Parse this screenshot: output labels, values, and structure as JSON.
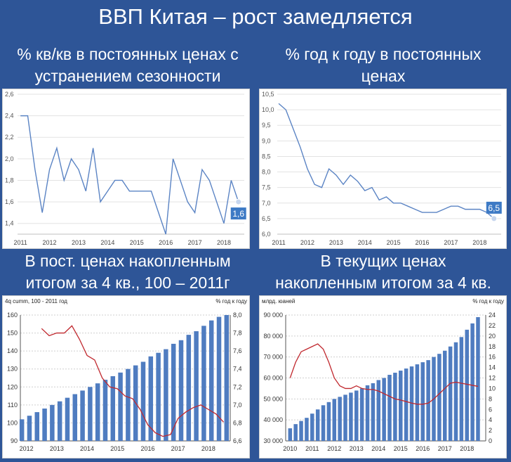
{
  "title": "ВВП Китая – рост замедляется",
  "panels": [
    {
      "heading1": "% кв/кв в постоянных ценах с",
      "heading2": "устранением сезонности"
    },
    {
      "heading1": "% год к году в постоянных",
      "heading2": "ценах"
    },
    {
      "heading1": "В пост. ценах накопленным",
      "heading2": "итогом за 4 кв., 100 – 2011г"
    },
    {
      "heading1": "В текущих ценах",
      "heading2": "накопленным итогом за 4 кв."
    }
  ],
  "chart_data": [
    {
      "type": "line",
      "series_color": "#5b84c4",
      "x_labels": [
        "2011",
        "2012",
        "2013",
        "2014",
        "2015",
        "2016",
        "2017",
        "2018"
      ],
      "x": [
        2011.0,
        2011.25,
        2011.5,
        2011.75,
        2012.0,
        2012.25,
        2012.5,
        2012.75,
        2013.0,
        2013.25,
        2013.5,
        2013.75,
        2014.0,
        2014.25,
        2014.5,
        2014.75,
        2015.0,
        2015.25,
        2015.5,
        2015.75,
        2016.0,
        2016.25,
        2016.5,
        2016.75,
        2017.0,
        2017.25,
        2017.5,
        2017.75,
        2018.0,
        2018.25,
        2018.5
      ],
      "values": [
        2.4,
        2.4,
        1.9,
        1.5,
        1.9,
        2.1,
        1.8,
        2.0,
        1.9,
        1.7,
        2.1,
        1.6,
        1.7,
        1.8,
        1.8,
        1.7,
        1.7,
        1.7,
        1.7,
        1.5,
        1.3,
        2.0,
        1.8,
        1.6,
        1.5,
        1.9,
        1.8,
        1.6,
        1.4,
        1.8,
        1.6
      ],
      "xlim": [
        2010.9,
        2018.7
      ],
      "ylim": [
        1.3,
        2.6
      ],
      "y_ticks": [
        "1,4",
        "1,6",
        "1,8",
        "2,0",
        "2,2",
        "2,4",
        "2,6"
      ],
      "last_label": "1,6"
    },
    {
      "type": "line",
      "series_color": "#5b84c4",
      "x_labels": [
        "2011",
        "2012",
        "2013",
        "2014",
        "2015",
        "2016",
        "2017",
        "2018"
      ],
      "x": [
        2011.0,
        2011.25,
        2011.5,
        2011.75,
        2012.0,
        2012.25,
        2012.5,
        2012.75,
        2013.0,
        2013.25,
        2013.5,
        2013.75,
        2014.0,
        2014.25,
        2014.5,
        2014.75,
        2015.0,
        2015.25,
        2015.5,
        2015.75,
        2016.0,
        2016.25,
        2016.5,
        2016.75,
        2017.0,
        2017.25,
        2017.5,
        2017.75,
        2018.0,
        2018.25,
        2018.5
      ],
      "values": [
        10.2,
        10.0,
        9.4,
        8.8,
        8.1,
        7.6,
        7.5,
        8.1,
        7.9,
        7.6,
        7.9,
        7.7,
        7.4,
        7.5,
        7.1,
        7.2,
        7.0,
        7.0,
        6.9,
        6.8,
        6.7,
        6.7,
        6.7,
        6.8,
        6.9,
        6.9,
        6.8,
        6.8,
        6.8,
        6.7,
        6.5
      ],
      "xlim": [
        2010.95,
        2018.75
      ],
      "ylim": [
        6.0,
        10.5
      ],
      "y_ticks": [
        "6,0",
        "6,5",
        "7,0",
        "7,5",
        "8,0",
        "8,5",
        "9,0",
        "9,5",
        "10,0",
        "10,5"
      ],
      "last_label": "6,5"
    },
    {
      "type": "bar+line",
      "left_axis_label": "4q cumm, 100 - 2011 год",
      "right_axis_label": "% год к году",
      "bar_color": "#4f7cc0",
      "line_color": "#c0282e",
      "x_labels": [
        "2012",
        "2013",
        "2014",
        "2015",
        "2016",
        "2017",
        "2018"
      ],
      "bar_x": [
        2011.85,
        2012.1,
        2012.35,
        2012.6,
        2012.85,
        2013.1,
        2013.35,
        2013.6,
        2013.85,
        2014.1,
        2014.35,
        2014.6,
        2014.85,
        2015.1,
        2015.35,
        2015.6,
        2015.85,
        2016.1,
        2016.35,
        2016.6,
        2016.85,
        2017.1,
        2017.35,
        2017.6,
        2017.85,
        2018.1,
        2018.35,
        2018.6
      ],
      "bar_values": [
        102,
        104,
        106,
        108,
        110,
        112,
        114,
        116,
        118,
        120,
        122,
        124,
        126,
        128,
        130,
        132,
        134,
        137,
        139,
        141,
        144,
        146,
        149,
        151,
        154,
        157,
        159,
        161
      ],
      "line_x": [
        2012.5,
        2012.75,
        2013.0,
        2013.25,
        2013.5,
        2013.75,
        2014.0,
        2014.25,
        2014.5,
        2014.75,
        2015.0,
        2015.25,
        2015.5,
        2015.75,
        2016.0,
        2016.25,
        2016.5,
        2016.75,
        2017.0,
        2017.25,
        2017.5,
        2017.75,
        2018.0,
        2018.25,
        2018.5
      ],
      "line_values": [
        7.85,
        7.77,
        7.8,
        7.8,
        7.88,
        7.73,
        7.55,
        7.5,
        7.3,
        7.2,
        7.18,
        7.1,
        7.07,
        6.95,
        6.78,
        6.69,
        6.65,
        6.67,
        6.85,
        6.92,
        6.97,
        7.0,
        6.95,
        6.9,
        6.81
      ],
      "xlim": [
        2011.8,
        2018.72
      ],
      "left_ylim": [
        90,
        160
      ],
      "right_ylim": [
        6.6,
        8.0
      ],
      "left_ticks": [
        "90",
        "100",
        "110",
        "120",
        "130",
        "140",
        "150",
        "160"
      ],
      "right_ticks": [
        "6,6",
        "6,8",
        "7,0",
        "7,2",
        "7,4",
        "7,6",
        "7,8",
        "8,0"
      ]
    },
    {
      "type": "bar+line",
      "left_axis_label": "млрд. юаней",
      "right_axis_label": "% год к году",
      "bar_color": "#4f7cc0",
      "line_color": "#c0282e",
      "x_labels": [
        "2010",
        "2011",
        "2012",
        "2013",
        "2014",
        "2015",
        "2016",
        "2017",
        "2018"
      ],
      "bar_x": [
        2010.0,
        2010.25,
        2010.5,
        2010.75,
        2011.0,
        2011.25,
        2011.5,
        2011.75,
        2012.0,
        2012.25,
        2012.5,
        2012.75,
        2013.0,
        2013.25,
        2013.5,
        2013.75,
        2014.0,
        2014.25,
        2014.5,
        2014.75,
        2015.0,
        2015.25,
        2015.5,
        2015.75,
        2016.0,
        2016.25,
        2016.5,
        2016.75,
        2017.0,
        2017.25,
        2017.5,
        2017.75,
        2018.0,
        2018.25,
        2018.5
      ],
      "bar_values": [
        36000,
        38000,
        39500,
        41000,
        43000,
        45000,
        47000,
        48500,
        50000,
        51000,
        52000,
        53000,
        54000,
        55000,
        56500,
        57500,
        59000,
        60000,
        61500,
        62500,
        63500,
        64500,
        65500,
        66500,
        67500,
        68500,
        70000,
        71500,
        73000,
        75000,
        77000,
        79500,
        83000,
        86000,
        89000
      ],
      "line_x": [
        2010.0,
        2010.25,
        2010.5,
        2010.75,
        2011.0,
        2011.25,
        2011.5,
        2011.75,
        2012.0,
        2012.25,
        2012.5,
        2012.75,
        2013.0,
        2013.25,
        2013.5,
        2013.75,
        2014.0,
        2014.25,
        2014.5,
        2014.75,
        2015.0,
        2015.25,
        2015.5,
        2015.75,
        2016.0,
        2016.25,
        2016.5,
        2016.75,
        2017.0,
        2017.25,
        2017.5,
        2017.75,
        2018.0,
        2018.25,
        2018.5
      ],
      "line_values": [
        12,
        15,
        17,
        17.5,
        18,
        18.5,
        17.5,
        15,
        12,
        10.5,
        10,
        10,
        10.5,
        10,
        9.8,
        9.8,
        9.5,
        9.0,
        8.5,
        8.0,
        7.8,
        7.5,
        7.2,
        7.0,
        7.0,
        7.2,
        8.0,
        9.0,
        10,
        11,
        11.2,
        11.0,
        10.8,
        10.6,
        10.4
      ],
      "xlim": [
        2009.8,
        2018.85
      ],
      "left_ylim": [
        30000,
        90000
      ],
      "right_ylim": [
        0,
        24
      ],
      "left_ticks": [
        "30 000",
        "40 000",
        "50 000",
        "60 000",
        "70 000",
        "80 000",
        "90 000"
      ],
      "right_ticks": [
        "0",
        "2",
        "4",
        "6",
        "8",
        "10",
        "12",
        "14",
        "16",
        "18",
        "20",
        "22",
        "24"
      ]
    }
  ]
}
